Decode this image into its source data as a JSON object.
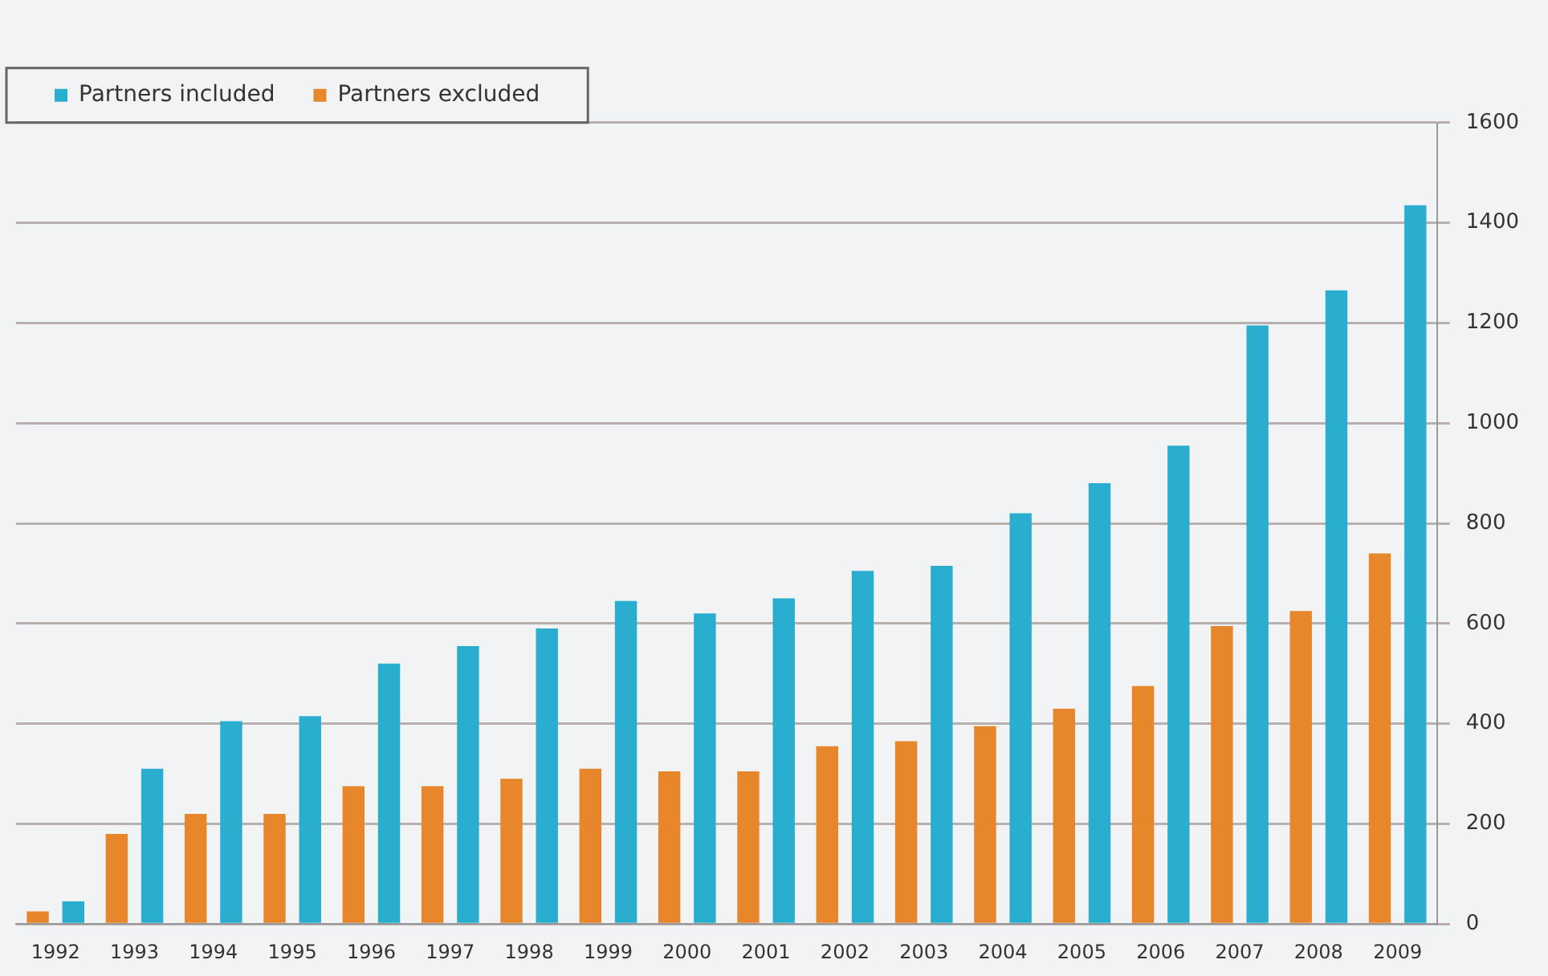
{
  "chart_data": {
    "type": "bar",
    "categories": [
      "1992",
      "1993",
      "1994",
      "1995",
      "1996",
      "1997",
      "1998",
      "1999",
      "2000",
      "2001",
      "2002",
      "2003",
      "2004",
      "2005",
      "2006",
      "2007",
      "2008",
      "2009"
    ],
    "series": [
      {
        "name": "Partners excluded",
        "color": "#e8862c",
        "values": [
          25,
          180,
          220,
          220,
          275,
          275,
          290,
          310,
          305,
          305,
          355,
          365,
          395,
          430,
          475,
          595,
          625,
          740
        ]
      },
      {
        "name": "Partners included",
        "color": "#2aaed0",
        "values": [
          45,
          310,
          405,
          415,
          520,
          555,
          590,
          645,
          620,
          650,
          705,
          715,
          820,
          880,
          955,
          1195,
          1265,
          1435
        ]
      }
    ],
    "ylim": [
      0,
      1600
    ],
    "yticks": [
      0,
      200,
      400,
      600,
      800,
      1000,
      1200,
      1400,
      1600
    ],
    "grid": "y",
    "legend": "top left"
  }
}
